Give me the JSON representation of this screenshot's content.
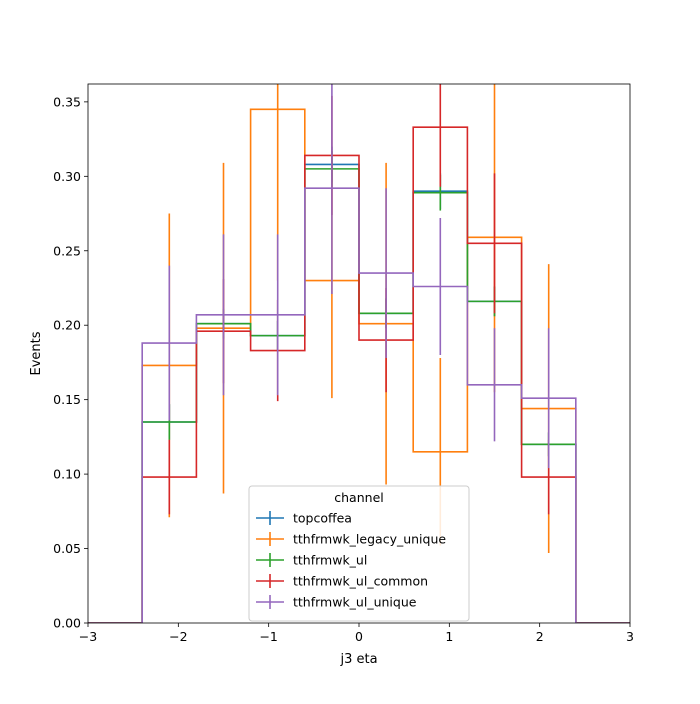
{
  "chart_data": {
    "type": "step",
    "xlabel": "j3 eta",
    "ylabel": "Events",
    "xlim": [
      -3,
      3
    ],
    "ylim": [
      0,
      0.362
    ],
    "x_ticks": [
      -3,
      -2,
      -1,
      0,
      1,
      2,
      3
    ],
    "x_tick_labels": [
      "−3",
      "−2",
      "−1",
      "0",
      "1",
      "2",
      "3"
    ],
    "y_ticks": [
      0,
      0.05,
      0.1,
      0.15,
      0.2,
      0.25,
      0.3,
      0.35
    ],
    "y_tick_labels": [
      "0.00",
      "0.05",
      "0.10",
      "0.15",
      "0.20",
      "0.25",
      "0.30",
      "0.35"
    ],
    "bin_edges": [
      -3,
      -2.4,
      -1.8,
      -1.2,
      -0.6,
      0,
      0.6,
      1.2,
      1.8,
      2.4,
      3
    ],
    "legend": {
      "title": "channel",
      "position": "lower center"
    },
    "series": [
      {
        "name": "topcoffea",
        "color": "#1f77b4",
        "values": [
          0,
          0.135,
          0.201,
          0.193,
          0.308,
          0.208,
          0.29,
          0.216,
          0.12,
          0
        ],
        "errors": [
          0,
          0.012,
          0.01,
          0.01,
          0.012,
          0.01,
          0.012,
          0.01,
          0.008,
          0
        ]
      },
      {
        "name": "tthfrmwk_legacy_unique",
        "color": "#ff7f0e",
        "values": [
          0,
          0.173,
          0.198,
          0.345,
          0.23,
          0.201,
          0.115,
          0.259,
          0.144,
          0
        ],
        "errors": [
          0,
          0.102,
          0.111,
          0.115,
          0.079,
          0.108,
          0.063,
          0.104,
          0.097,
          0
        ]
      },
      {
        "name": "tthfrmwk_ul",
        "color": "#2ca02c",
        "values": [
          0,
          0.135,
          0.201,
          0.193,
          0.305,
          0.208,
          0.289,
          0.216,
          0.12,
          0
        ],
        "errors": [
          0,
          0.012,
          0.01,
          0.01,
          0.012,
          0.01,
          0.012,
          0.01,
          0.008,
          0
        ]
      },
      {
        "name": "tthfrmwk_ul_common",
        "color": "#d62728",
        "values": [
          0,
          0.098,
          0.196,
          0.183,
          0.314,
          0.19,
          0.333,
          0.255,
          0.098,
          0
        ],
        "errors": [
          0,
          0.025,
          0.035,
          0.034,
          0.04,
          0.035,
          0.04,
          0.047,
          0.025,
          0
        ]
      },
      {
        "name": "tthfrmwk_ul_unique",
        "color": "#9467bd",
        "values": [
          0,
          0.188,
          0.207,
          0.207,
          0.292,
          0.235,
          0.226,
          0.16,
          0.151,
          0
        ],
        "errors": [
          0,
          0.052,
          0.054,
          0.054,
          0.071,
          0.057,
          0.046,
          0.038,
          0.047,
          0
        ]
      }
    ]
  }
}
